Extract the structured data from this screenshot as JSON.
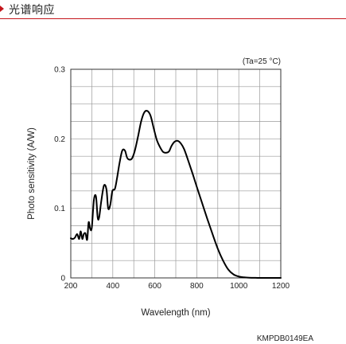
{
  "header": {
    "title": "光谱响应",
    "accent_color": "#c4161c"
  },
  "chart_data": {
    "type": "line",
    "title": "",
    "xlabel": "Wavelength (nm)",
    "ylabel": "Photo sensitivity (A/W)",
    "annotation": "(Ta=25 °C)",
    "footer_code": "KMPDB0149EA",
    "xlim": [
      200,
      1200
    ],
    "ylim": [
      0,
      0.3
    ],
    "x_ticks": [
      200,
      400,
      600,
      800,
      1000,
      1200
    ],
    "y_ticks": [
      0,
      0.1,
      0.2,
      0.3
    ],
    "x_tick_labels": [
      "200",
      "400",
      "600",
      "800",
      "1000",
      "1200"
    ],
    "y_tick_labels": [
      "0",
      "0.1",
      "0.2",
      "0.3"
    ],
    "grid": true,
    "line_color": "#000000",
    "series": [
      {
        "x": [
          200,
          210,
          220,
          230,
          240,
          247,
          255,
          262,
          270,
          278,
          285,
          292,
          300,
          310,
          320,
          328,
          335,
          345,
          358,
          370,
          378,
          388,
          398,
          410,
          420,
          432,
          445,
          458,
          468,
          480,
          492,
          505,
          520,
          535,
          550,
          565,
          580,
          595,
          610,
          625,
          640,
          655,
          668,
          680,
          695,
          710,
          725,
          740,
          760,
          780,
          800,
          825,
          850,
          875,
          900,
          925,
          950,
          975,
          1000,
          1025,
          1050,
          1080,
          1110,
          1150,
          1200
        ],
        "y": [
          0.057,
          0.056,
          0.058,
          0.063,
          0.056,
          0.067,
          0.056,
          0.063,
          0.064,
          0.055,
          0.08,
          0.071,
          0.072,
          0.112,
          0.117,
          0.087,
          0.087,
          0.11,
          0.133,
          0.127,
          0.1,
          0.105,
          0.125,
          0.128,
          0.143,
          0.165,
          0.183,
          0.183,
          0.173,
          0.17,
          0.172,
          0.183,
          0.203,
          0.225,
          0.238,
          0.24,
          0.233,
          0.215,
          0.198,
          0.188,
          0.181,
          0.18,
          0.182,
          0.19,
          0.196,
          0.197,
          0.193,
          0.185,
          0.168,
          0.15,
          0.131,
          0.108,
          0.085,
          0.063,
          0.042,
          0.025,
          0.012,
          0.005,
          0.002,
          0.0008,
          0.0003,
          0.0001,
          0.0,
          0.0,
          0.0
        ]
      }
    ]
  }
}
